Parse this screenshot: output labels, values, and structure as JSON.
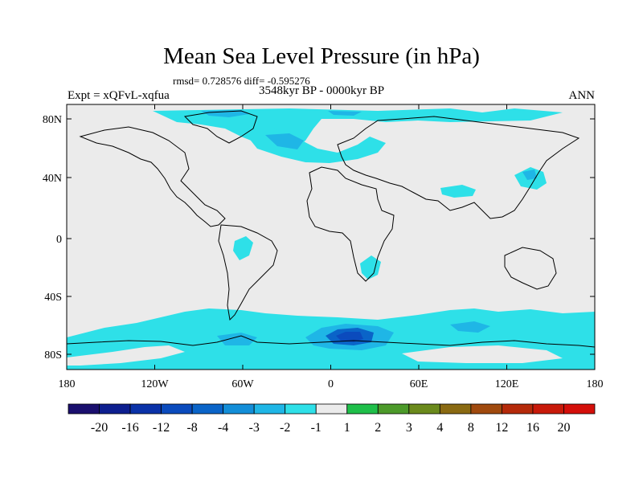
{
  "title": "Mean Sea Level Pressure (in hPa)",
  "stats": "rmsd= 0.728576 diff= -0.595276",
  "period": "3548kyr BP - 0000kyr BP",
  "experiment": "Expt = xQFvL-xqfua",
  "season": "ANN",
  "axes": {
    "x_ticks": [
      "180",
      "120W",
      "60W",
      "0",
      "60E",
      "120E",
      "180"
    ],
    "y_ticks": [
      "80N",
      "40N",
      "0",
      "40S",
      "80S"
    ]
  },
  "colorbar": {
    "labels": [
      "-20",
      "-16",
      "-12",
      "-8",
      "-4",
      "-3",
      "-2",
      "-1",
      "1",
      "2",
      "3",
      "4",
      "8",
      "12",
      "16",
      "20"
    ],
    "colors": [
      "#1a0f6e",
      "#0d1f8f",
      "#0a32a8",
      "#0b4bbd",
      "#0a64c8",
      "#138ed8",
      "#1fb6e6",
      "#2ee0e8",
      "#ebebeb",
      "#1fbf4a",
      "#4c9a2a",
      "#6b8a1c",
      "#8a6a12",
      "#a04a0e",
      "#b52a0a",
      "#c81a0a",
      "#d40f0a"
    ]
  },
  "colors": {
    "land_background": "#ebebeb",
    "light_negative": "#2ee0e8",
    "medium_negative": "#1fb6e6",
    "strong_negative": "#0b4bbd",
    "coastline": "#000000"
  }
}
